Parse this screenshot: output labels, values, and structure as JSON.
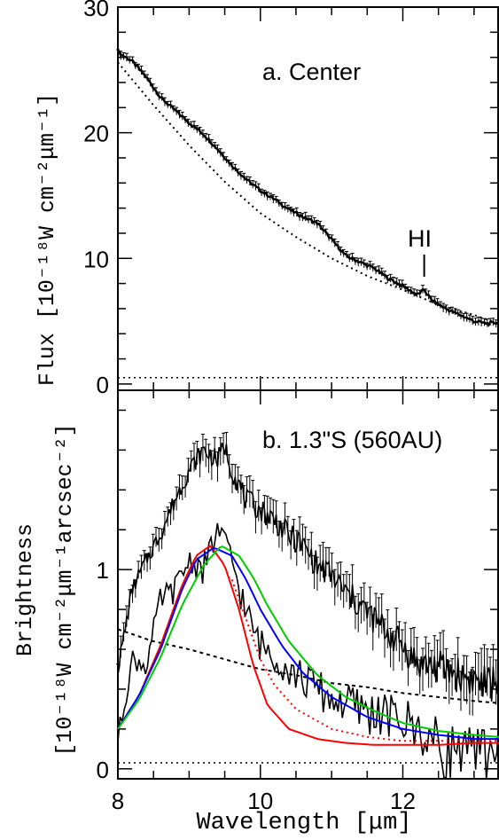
{
  "chart_data": [
    {
      "type": "line",
      "panel_label": "a. Center",
      "ylabel": "Flux [10⁻¹⁸W cm⁻²μm⁻¹]",
      "xlim": [
        8.0,
        13.35
      ],
      "ylim": [
        -0.5,
        30.0
      ],
      "y_ticks": [
        "0",
        "10",
        "20",
        "30"
      ],
      "y_tick_values": [
        0,
        10,
        20,
        30
      ],
      "annotation": "HI",
      "annotation_x": 12.3,
      "series": [
        {
          "style": "black-line-with-errorbars",
          "x": [
            8.0,
            8.2,
            8.4,
            8.6,
            8.8,
            9.0,
            9.2,
            9.4,
            9.6,
            9.8,
            10.0,
            10.2,
            10.4,
            10.6,
            10.8,
            11.0,
            11.2,
            11.4,
            11.6,
            11.8,
            12.0,
            12.2,
            12.3,
            12.4,
            12.6,
            12.8,
            13.0,
            13.2,
            13.35
          ],
          "values": [
            26.4,
            25.7,
            24.4,
            22.8,
            21.8,
            20.8,
            19.9,
            18.7,
            17.4,
            16.3,
            15.4,
            14.7,
            13.9,
            13.3,
            12.8,
            11.5,
            10.2,
            9.7,
            9.2,
            8.4,
            7.8,
            7.1,
            7.5,
            6.7,
            6.0,
            5.5,
            5.0,
            4.8,
            4.9
          ]
        },
        {
          "style": "black-dotted",
          "x": [
            8.0,
            8.5,
            9.0,
            9.5,
            10.0,
            10.5,
            11.0,
            11.5,
            12.0,
            12.5,
            13.0,
            13.35
          ],
          "values": [
            25.6,
            22.2,
            19.0,
            16.1,
            13.6,
            11.7,
            10.0,
            8.6,
            7.5,
            6.3,
            5.5,
            4.8
          ]
        },
        {
          "style": "black-dotted-baseline",
          "x": [
            8.0,
            13.35
          ],
          "values": [
            0.5,
            0.5
          ]
        }
      ]
    },
    {
      "type": "line",
      "panel_label": "b. 1.3\"S (560AU)",
      "ylabel_line1": "Brightness",
      "ylabel_line2": "[10⁻¹⁸W cm⁻²μm⁻¹arcsec⁻²]",
      "xlabel": "Wavelength [μm]",
      "xlim": [
        8.0,
        13.35
      ],
      "ylim": [
        -0.05,
        1.9
      ],
      "x_ticks": [
        "8",
        "10",
        "12"
      ],
      "x_tick_values": [
        8,
        10,
        12
      ],
      "y_ticks": [
        "0",
        "1"
      ],
      "y_tick_values": [
        0,
        1
      ],
      "series": [
        {
          "style": "black-line-with-errorbars",
          "x": [
            8.0,
            8.2,
            8.4,
            8.6,
            8.8,
            9.0,
            9.2,
            9.4,
            9.5,
            9.6,
            9.8,
            10.0,
            10.2,
            10.4,
            10.6,
            10.8,
            11.0,
            11.2,
            11.4,
            11.6,
            11.8,
            12.0,
            12.2,
            12.4,
            12.6,
            12.8,
            13.0,
            13.2,
            13.35
          ],
          "values": [
            0.5,
            0.9,
            1.05,
            1.18,
            1.35,
            1.5,
            1.6,
            1.55,
            1.62,
            1.5,
            1.35,
            1.3,
            1.25,
            1.17,
            1.12,
            1.02,
            0.97,
            0.88,
            0.82,
            0.75,
            0.68,
            0.62,
            0.53,
            0.52,
            0.5,
            0.47,
            0.45,
            0.42,
            0.45
          ]
        },
        {
          "style": "black-noisy-line",
          "x": [
            8.0,
            8.2,
            8.4,
            8.6,
            8.8,
            9.0,
            9.2,
            9.4,
            9.6,
            9.8,
            10.0,
            10.2,
            10.4,
            10.6,
            10.8,
            11.0,
            11.2,
            11.4,
            11.6,
            11.8,
            12.0,
            12.2,
            12.4,
            12.6,
            12.8,
            13.0,
            13.2,
            13.35
          ],
          "values": [
            0.15,
            0.55,
            0.52,
            0.85,
            0.9,
            1.05,
            1.0,
            1.2,
            1.05,
            0.78,
            0.62,
            0.58,
            0.5,
            0.45,
            0.4,
            0.35,
            0.33,
            0.3,
            0.28,
            0.26,
            0.24,
            0.2,
            0.15,
            0.08,
            0.12,
            0.05,
            0.1,
            0.15
          ]
        },
        {
          "style": "black-dashed",
          "x": [
            8.0,
            8.5,
            9.0,
            9.5,
            10.0,
            10.5,
            11.0,
            11.5,
            12.0,
            12.5,
            13.0,
            13.35
          ],
          "values": [
            0.7,
            0.64,
            0.6,
            0.55,
            0.5,
            0.47,
            0.43,
            0.41,
            0.38,
            0.36,
            0.34,
            0.33
          ]
        },
        {
          "style": "black-dotted-baseline",
          "x": [
            8.0,
            13.35
          ],
          "values": [
            0.03,
            0.03
          ]
        },
        {
          "style": "red",
          "color": "#ff0000",
          "x": [
            8.0,
            8.3,
            8.6,
            8.9,
            9.1,
            9.3,
            9.5,
            9.7,
            9.9,
            10.1,
            10.4,
            10.8,
            11.2,
            11.6,
            12.0,
            12.5,
            13.0,
            13.35
          ],
          "values": [
            0.2,
            0.37,
            0.62,
            0.92,
            1.07,
            1.12,
            1.02,
            0.8,
            0.52,
            0.32,
            0.2,
            0.15,
            0.13,
            0.12,
            0.12,
            0.12,
            0.13,
            0.13
          ]
        },
        {
          "style": "red-dotted",
          "color": "#ff0000",
          "x": [
            9.6,
            9.8,
            10.0,
            10.2,
            10.5,
            11.0,
            11.5,
            12.0,
            12.5,
            13.0,
            13.35
          ],
          "values": [
            0.95,
            0.75,
            0.55,
            0.42,
            0.3,
            0.2,
            0.16,
            0.14,
            0.14,
            0.14,
            0.14
          ]
        },
        {
          "style": "blue",
          "color": "#0000ff",
          "x": [
            8.0,
            8.3,
            8.6,
            8.9,
            9.1,
            9.35,
            9.6,
            9.8,
            10.0,
            10.3,
            10.6,
            11.0,
            11.5,
            12.0,
            12.5,
            13.0,
            13.35
          ],
          "values": [
            0.2,
            0.37,
            0.6,
            0.9,
            1.05,
            1.11,
            1.07,
            0.95,
            0.8,
            0.62,
            0.48,
            0.36,
            0.26,
            0.2,
            0.17,
            0.15,
            0.15
          ]
        },
        {
          "style": "green",
          "color": "#00cc00",
          "x": [
            8.0,
            8.3,
            8.6,
            8.9,
            9.2,
            9.45,
            9.7,
            9.9,
            10.1,
            10.4,
            10.8,
            11.2,
            11.6,
            12.0,
            12.5,
            13.0,
            13.35
          ],
          "values": [
            0.2,
            0.35,
            0.56,
            0.82,
            1.02,
            1.12,
            1.07,
            0.96,
            0.82,
            0.64,
            0.47,
            0.36,
            0.29,
            0.23,
            0.19,
            0.17,
            0.16
          ]
        }
      ]
    }
  ]
}
